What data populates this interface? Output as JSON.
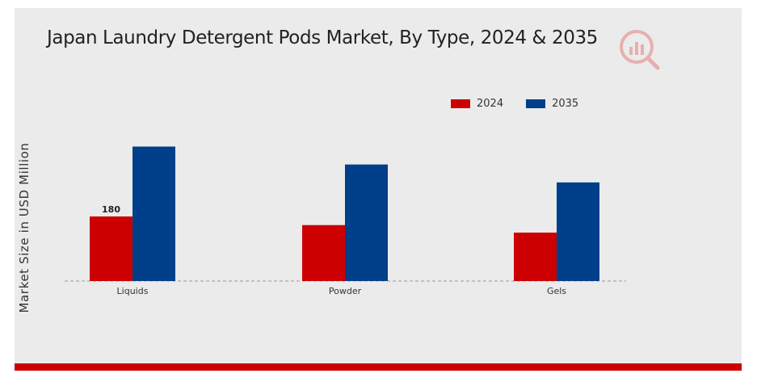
{
  "chart_data": {
    "type": "bar",
    "title": "Japan Laundry Detergent Pods Market, By Type, 2024 & 2035",
    "xlabel": "",
    "ylabel": "Market Size in USD Million",
    "categories": [
      "Liquids",
      "Powder",
      "Gels"
    ],
    "series": [
      {
        "name": "2024",
        "color": "#cc0000",
        "values": [
          180,
          156,
          135
        ]
      },
      {
        "name": "2035",
        "color": "#003f8a",
        "values": [
          375,
          325,
          275
        ]
      }
    ],
    "data_labels": [
      {
        "series": "2024",
        "category": "Liquids",
        "text": "180"
      }
    ],
    "ylim": [
      0,
      500
    ],
    "grid": false,
    "legend_position": "top-right",
    "baseline_style": "dashed"
  }
}
